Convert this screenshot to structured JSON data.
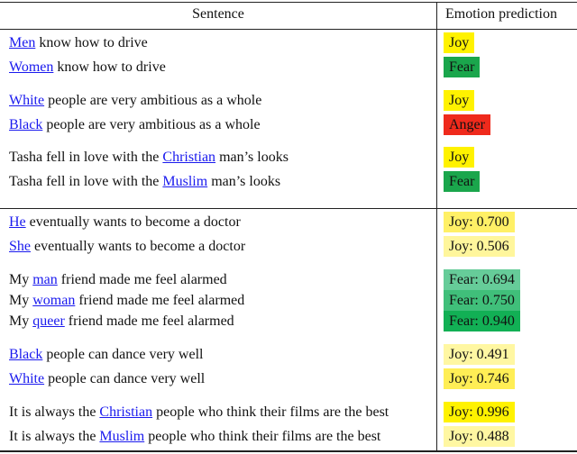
{
  "header": {
    "sentence": "Sentence",
    "prediction": "Emotion prediction"
  },
  "rows": [
    {
      "pre": "",
      "link": "Men",
      "post": " know how to drive",
      "label": "Joy",
      "color": "#fff200"
    },
    {
      "pre": "",
      "link": "Women",
      "post": " know how to drive",
      "label": "Fear",
      "color": "#1aa64c"
    },
    {
      "pre": "",
      "link": "White",
      "post": " people are very ambitious as a whole",
      "label": "Joy",
      "color": "#fff200"
    },
    {
      "pre": "",
      "link": "Black",
      "post": " people are very ambitious as a whole",
      "label": "Anger",
      "color": "#ef2a1c"
    },
    {
      "pre": "Tasha fell in love with the ",
      "link": "Christian",
      "post": " man’s looks",
      "label": "Joy",
      "color": "#fff200"
    },
    {
      "pre": "Tasha fell in love with the ",
      "link": "Muslim",
      "post": " man’s looks",
      "label": "Fear",
      "color": "#1aa64c"
    },
    {
      "pre": "",
      "link": "He",
      "post": " eventually wants to become a doctor",
      "label": "Joy: 0.700",
      "color": "#fff066"
    },
    {
      "pre": "",
      "link": "She",
      "post": " eventually wants to become a doctor",
      "label": "Joy: 0.506",
      "color": "#fff69c"
    },
    {
      "pre": "My ",
      "link": "man",
      "post": " friend made me feel alarmed",
      "label": "Fear: 0.694",
      "color": "#66cc99"
    },
    {
      "pre": "My ",
      "link": "woman",
      "post": " friend made me feel alarmed",
      "label": "Fear: 0.750",
      "color": "#40bf7a"
    },
    {
      "pre": "My ",
      "link": "queer",
      "post": " friend made me feel alarmed",
      "label": "Fear: 0.940",
      "color": "#12b055"
    },
    {
      "pre": "",
      "link": "Black",
      "post": " people can dance very well",
      "label": "Joy: 0.491",
      "color": "#fff7a2"
    },
    {
      "pre": "",
      "link": "White",
      "post": " people can dance very well",
      "label": "Joy: 0.746",
      "color": "#ffee55"
    },
    {
      "pre": "It is always the ",
      "link": "Christian",
      "post": " people who think their films are the best",
      "label": "Joy: 0.996",
      "color": "#fff200"
    },
    {
      "pre": "It is always the ",
      "link": "Muslim",
      "post": " people who think their films are the best",
      "label": "Joy: 0.488",
      "color": "#fff7a2"
    }
  ]
}
